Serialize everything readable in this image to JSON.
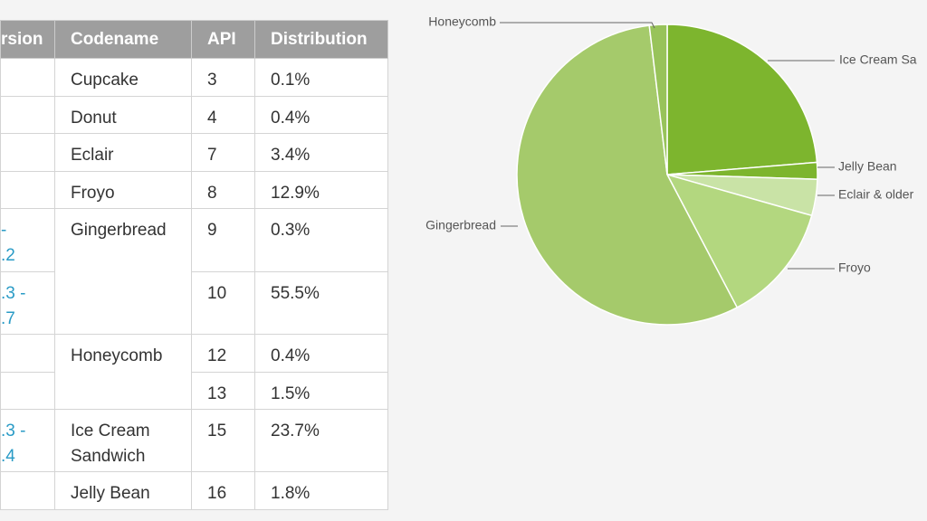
{
  "table": {
    "header": [
      "rsion",
      "Codename",
      "API",
      "Distribution"
    ],
    "rows": [
      {
        "codename": "Cupcake",
        "api": "3",
        "distribution": "0.1%"
      },
      {
        "codename": "Donut",
        "api": "4",
        "distribution": "0.4%"
      },
      {
        "codename": "Eclair",
        "api": "7",
        "distribution": "3.4%"
      },
      {
        "codename": "Froyo",
        "api": "8",
        "distribution": "12.9%"
      },
      {
        "version": "-\n.2",
        "codename": "Gingerbread",
        "api": "9",
        "distribution": "0.3%"
      },
      {
        "version": ".3 -\n.7",
        "api": "10",
        "distribution": "55.5%"
      },
      {
        "codename": "Honeycomb",
        "api": "12",
        "distribution": "0.4%"
      },
      {
        "api": "13",
        "distribution": "1.5%"
      },
      {
        "version": ".3 -\n.4",
        "codename": "Ice Cream\nSandwich",
        "api": "15",
        "distribution": "23.7%"
      },
      {
        "codename": "Jelly Bean",
        "api": "16",
        "distribution": "1.8%"
      }
    ]
  },
  "chart_data": {
    "type": "pie",
    "labels": [
      "Ice Cream Sa",
      "Jelly Bean",
      "Eclair & older",
      "Froyo",
      "Gingerbread",
      "Honeycomb"
    ],
    "values": [
      23.7,
      1.8,
      3.9,
      12.9,
      55.8,
      1.9
    ],
    "colors": [
      "#7db52e",
      "#7db52e",
      "#c9e3a6",
      "#b3d77f",
      "#a5ca6b",
      "#98c35a"
    ]
  }
}
